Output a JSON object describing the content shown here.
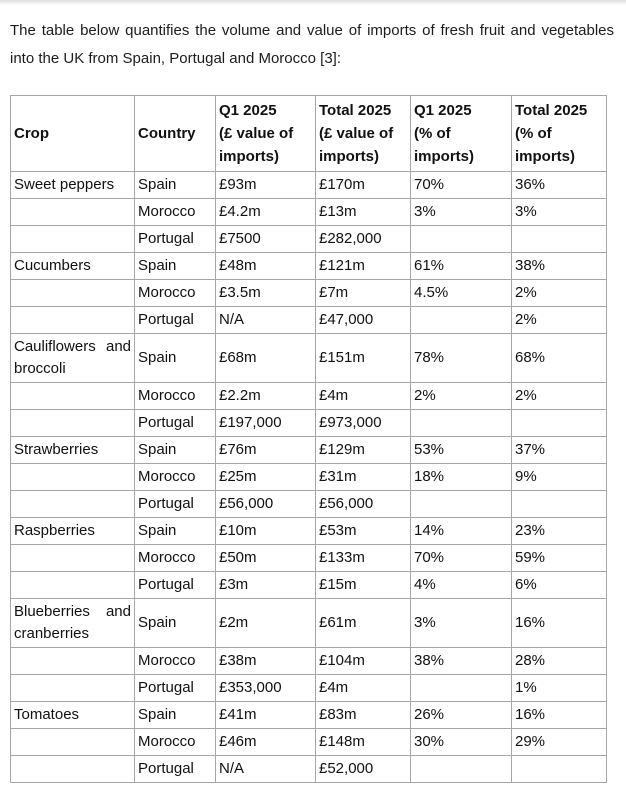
{
  "page": {
    "intro_text": "The table below quantifies the volume and value of imports of fresh fruit and vegetables into the UK from Spain, Portugal and Morocco [3]:"
  },
  "colors": {
    "text": "#1c1c1c",
    "table_border": "#a6a6a6",
    "background": "#ffffff"
  },
  "table": {
    "headers": [
      [
        "Crop"
      ],
      [
        "Country"
      ],
      [
        "Q1 2025",
        "(£ value of",
        "imports)"
      ],
      [
        "Total 2025",
        "(£ value of",
        "imports)"
      ],
      [
        "Q1 2025",
        "(% of",
        "imports)"
      ],
      [
        "Total 2025",
        "(% of",
        "imports)"
      ]
    ],
    "rows": [
      {
        "cells": [
          "Sweet peppers",
          "Spain",
          "£93m",
          "£170m",
          "70%",
          "36%"
        ]
      },
      {
        "cells": [
          "",
          "Morocco",
          "£4.2m",
          "£13m",
          "3%",
          "3%"
        ]
      },
      {
        "cells": [
          "",
          "Portugal",
          "£7500",
          "£282,000",
          "",
          ""
        ]
      },
      {
        "cells": [
          "Cucumbers",
          "Spain",
          "£48m",
          "£121m",
          "61%",
          "38%"
        ]
      },
      {
        "cells": [
          "",
          "Morocco",
          "£3.5m",
          "£7m",
          "4.5%",
          "2%"
        ]
      },
      {
        "cells": [
          "",
          "Portugal",
          "N/A",
          "£47,000",
          "",
          "2%"
        ]
      },
      {
        "cells": [
          "Cauliflowers and broccoli",
          "Spain",
          "£68m",
          "£151m",
          "78%",
          "68%"
        ]
      },
      {
        "cells": [
          "",
          "Morocco",
          "£2.2m",
          "£4m",
          "2%",
          "2%"
        ]
      },
      {
        "cells": [
          "",
          "Portugal",
          "£197,000",
          "£973,000",
          "",
          ""
        ]
      },
      {
        "cells": [
          "Strawberries",
          "Spain",
          "£76m",
          "£129m",
          "53%",
          "37%"
        ]
      },
      {
        "cells": [
          "",
          "Morocco",
          "£25m",
          "£31m",
          "18%",
          "9%"
        ]
      },
      {
        "cells": [
          "",
          "Portugal",
          "£56,000",
          "£56,000",
          "",
          ""
        ]
      },
      {
        "cells": [
          "Raspberries",
          "Spain",
          "£10m",
          "£53m",
          "14%",
          "23%"
        ]
      },
      {
        "cells": [
          "",
          "Morocco",
          "£50m",
          "£133m",
          "70%",
          "59%"
        ]
      },
      {
        "cells": [
          "",
          "Portugal",
          "£3m",
          "£15m",
          "4%",
          "6%"
        ]
      },
      {
        "cells": [
          "Blueberries and cranberries",
          "Spain",
          "£2m",
          "£61m",
          "3%",
          "16%"
        ]
      },
      {
        "cells": [
          "",
          "Morocco",
          "£38m",
          "£104m",
          "38%",
          "28%"
        ]
      },
      {
        "cells": [
          "",
          "Portugal",
          "£353,000",
          "£4m",
          "",
          "1%"
        ]
      },
      {
        "cells": [
          "Tomatoes",
          "Spain",
          "£41m",
          "£83m",
          "26%",
          "16%"
        ]
      },
      {
        "cells": [
          "",
          "Morocco",
          "£46m",
          "£148m",
          "30%",
          "29%"
        ]
      },
      {
        "cells": [
          "",
          "Portugal",
          "N/A",
          "£52,000",
          "",
          ""
        ]
      }
    ]
  }
}
